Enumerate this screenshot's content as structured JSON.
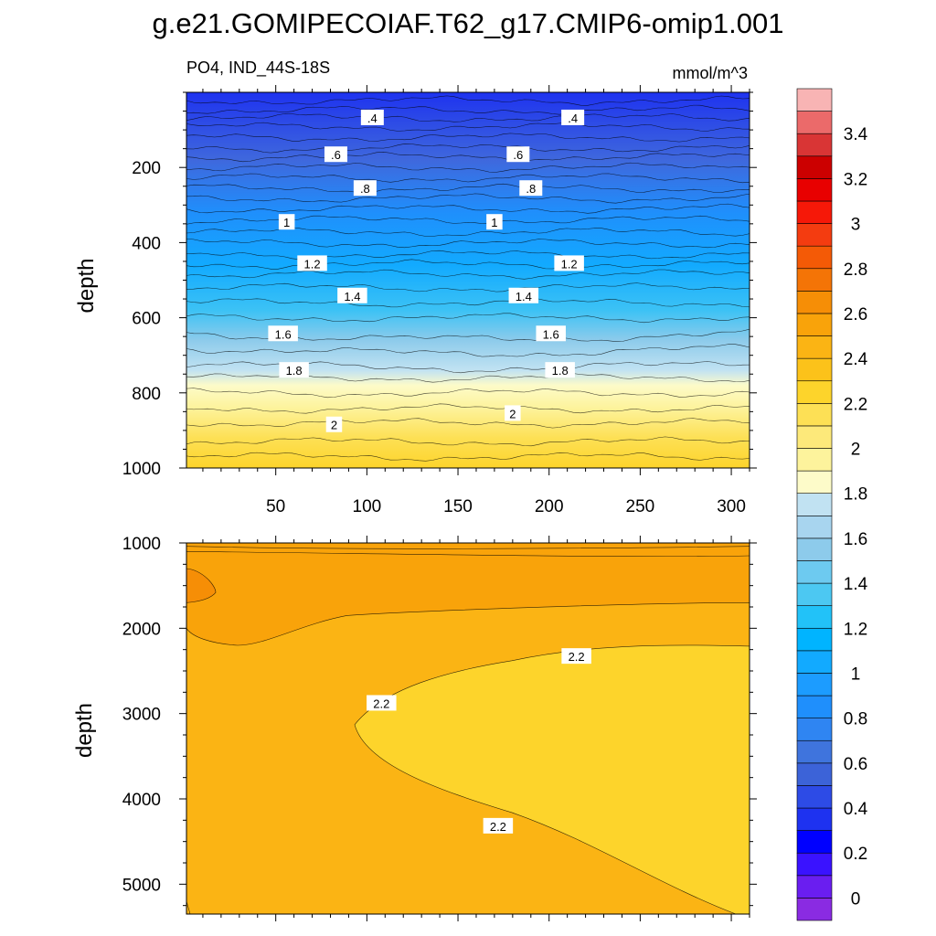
{
  "title": "g.e21.GOMIPECOIAF.T62_g17.CMIP6-omip1.001",
  "chart_data": [
    {
      "type": "contour",
      "panel": "top",
      "subtitle_left": "PO4, IND_44S-18S",
      "subtitle_right": "mmol/m^3",
      "ylabel": "depth",
      "xlabel": "",
      "x_range": [
        1,
        310
      ],
      "y_range": [
        0,
        1000
      ],
      "y_reversed": true,
      "x_ticks": [
        50,
        100,
        150,
        200,
        250,
        300
      ],
      "x_tick_labels": [
        "50",
        "100",
        "150",
        "200",
        "250",
        "300"
      ],
      "y_ticks": [
        200,
        400,
        600,
        800,
        1000
      ],
      "y_tick_labels": [
        "200",
        "400",
        "600",
        "800",
        "1000"
      ],
      "contour_interval": 0.1,
      "contour_labels": [
        {
          "text": ".4",
          "x": 103,
          "y": 68
        },
        {
          "text": ".4",
          "x": 213,
          "y": 68
        },
        {
          "text": ".6",
          "x": 83,
          "y": 166
        },
        {
          "text": ".6",
          "x": 183,
          "y": 166
        },
        {
          "text": ".8",
          "x": 99,
          "y": 256
        },
        {
          "text": ".8",
          "x": 190,
          "y": 256
        },
        {
          "text": "1",
          "x": 56,
          "y": 346
        },
        {
          "text": "1",
          "x": 170,
          "y": 346
        },
        {
          "text": "1.2",
          "x": 70,
          "y": 456
        },
        {
          "text": "1.2",
          "x": 211,
          "y": 456
        },
        {
          "text": "1.4",
          "x": 92,
          "y": 542
        },
        {
          "text": "1.4",
          "x": 186,
          "y": 542
        },
        {
          "text": "1.6",
          "x": 54,
          "y": 643
        },
        {
          "text": "1.6",
          "x": 201,
          "y": 643
        },
        {
          "text": "1.8",
          "x": 60,
          "y": 740
        },
        {
          "text": "1.8",
          "x": 206,
          "y": 740
        },
        {
          "text": "2",
          "x": 82,
          "y": 885
        },
        {
          "text": "2",
          "x": 180,
          "y": 855
        }
      ]
    },
    {
      "type": "contour",
      "panel": "bottom",
      "ylabel": "depth",
      "xlabel": "",
      "x_range": [
        1,
        310
      ],
      "y_range": [
        1000,
        5350
      ],
      "y_reversed": true,
      "y_ticks": [
        1000,
        2000,
        3000,
        4000,
        5000
      ],
      "y_tick_labels": [
        "1000",
        "2000",
        "3000",
        "4000",
        "5000"
      ],
      "contour_labels": [
        {
          "text": "2.2",
          "x": 108,
          "y": 2880
        },
        {
          "text": "2.2",
          "x": 215,
          "y": 2330
        },
        {
          "text": "2.2",
          "x": 172,
          "y": 4320
        }
      ]
    },
    {
      "type": "colorbar",
      "levels": [
        0,
        0.1,
        0.2,
        0.3,
        0.4,
        0.5,
        0.6,
        0.7,
        0.8,
        0.9,
        1,
        1.1,
        1.2,
        1.3,
        1.4,
        1.5,
        1.6,
        1.7,
        1.8,
        1.9,
        2,
        2.1,
        2.2,
        2.3,
        2.4,
        2.5,
        2.6,
        2.7,
        2.8,
        2.9,
        3,
        3.1,
        3.2,
        3.3,
        3.4,
        3.5
      ],
      "tick_labels": [
        "0",
        "0.2",
        "0.4",
        "0.6",
        "0.8",
        "1",
        "1.2",
        "1.4",
        "1.6",
        "1.8",
        "2",
        "2.2",
        "2.4",
        "2.6",
        "2.8",
        "3",
        "3.2",
        "3.4"
      ],
      "colors": [
        "#8a2be2",
        "#6a1ef0",
        "#3a12ff",
        "#0000ff",
        "#1e32f0",
        "#2d4be6",
        "#3c63d8",
        "#3f74dd",
        "#2f85f2",
        "#1f8ffc",
        "#1c9cff",
        "#12aaff",
        "#00b4ff",
        "#22c2f8",
        "#4cc8f2",
        "#6dcaf0",
        "#8dcbeb",
        "#a8d5ef",
        "#c1e2f2",
        "#fdfbc9",
        "#fdf39c",
        "#fde97a",
        "#fde055",
        "#fdd42b",
        "#fcc21a",
        "#fbb414",
        "#f9a30a",
        "#f68e06",
        "#f47406",
        "#f45a06",
        "#f43c10",
        "#f61808",
        "#e80000",
        "#cc0000",
        "#d93535",
        "#eb6a6a",
        "#f8b4b4"
      ]
    }
  ]
}
